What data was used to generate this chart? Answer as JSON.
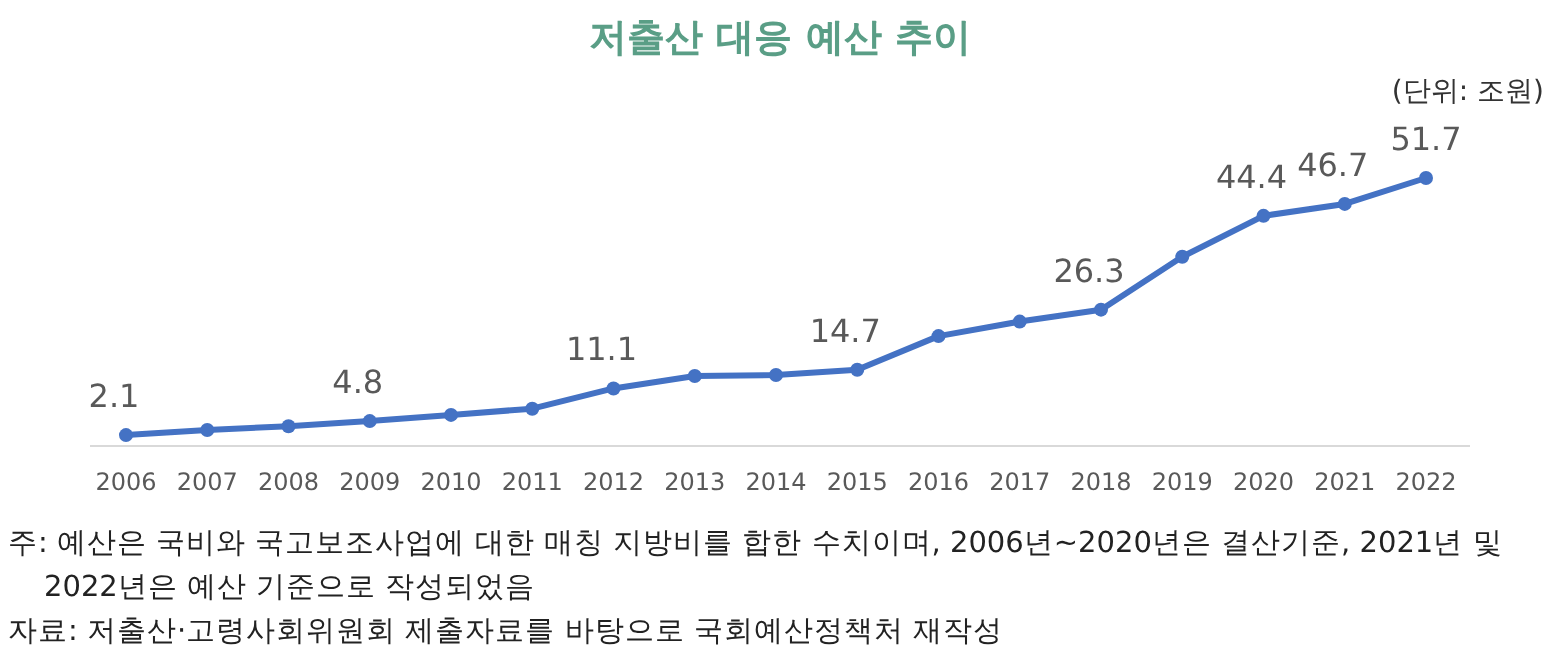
{
  "chart_data": {
    "type": "line",
    "title": "저출산 대응 예산 추이",
    "subtitle": "(단위: 조원)",
    "categories": [
      "2006",
      "2007",
      "2008",
      "2009",
      "2010",
      "2011",
      "2012",
      "2013",
      "2014",
      "2015",
      "2016",
      "2017",
      "2018",
      "2019",
      "2020",
      "2021",
      "2022"
    ],
    "series": [
      {
        "color": "#4472c4",
        "values": [
          2.1,
          3.1,
          3.8,
          4.8,
          6.0,
          7.2,
          11.1,
          13.5,
          13.7,
          14.7,
          21.2,
          24.0,
          26.3,
          36.5,
          44.4,
          46.7,
          51.7
        ],
        "value_labels": [
          "2.1",
          null,
          null,
          "4.8",
          null,
          null,
          "11.1",
          null,
          null,
          "14.7",
          null,
          null,
          "26.3",
          null,
          "44.4",
          "46.7",
          "51.7"
        ]
      }
    ],
    "marker": "circle",
    "line_style": "solid",
    "annotations": [
      "주: 예산은 국비와 국고보조사업에 대한 매칭 지방비를 합한 수치이며, 2006년~2020년은 결산기준, 2021년 및 2022년은 예산 기준으로 작성되었음",
      "자료: 저출산·고령사회위원회 제출자료를 바탕으로 국회예산정책처 재작성"
    ]
  }
}
